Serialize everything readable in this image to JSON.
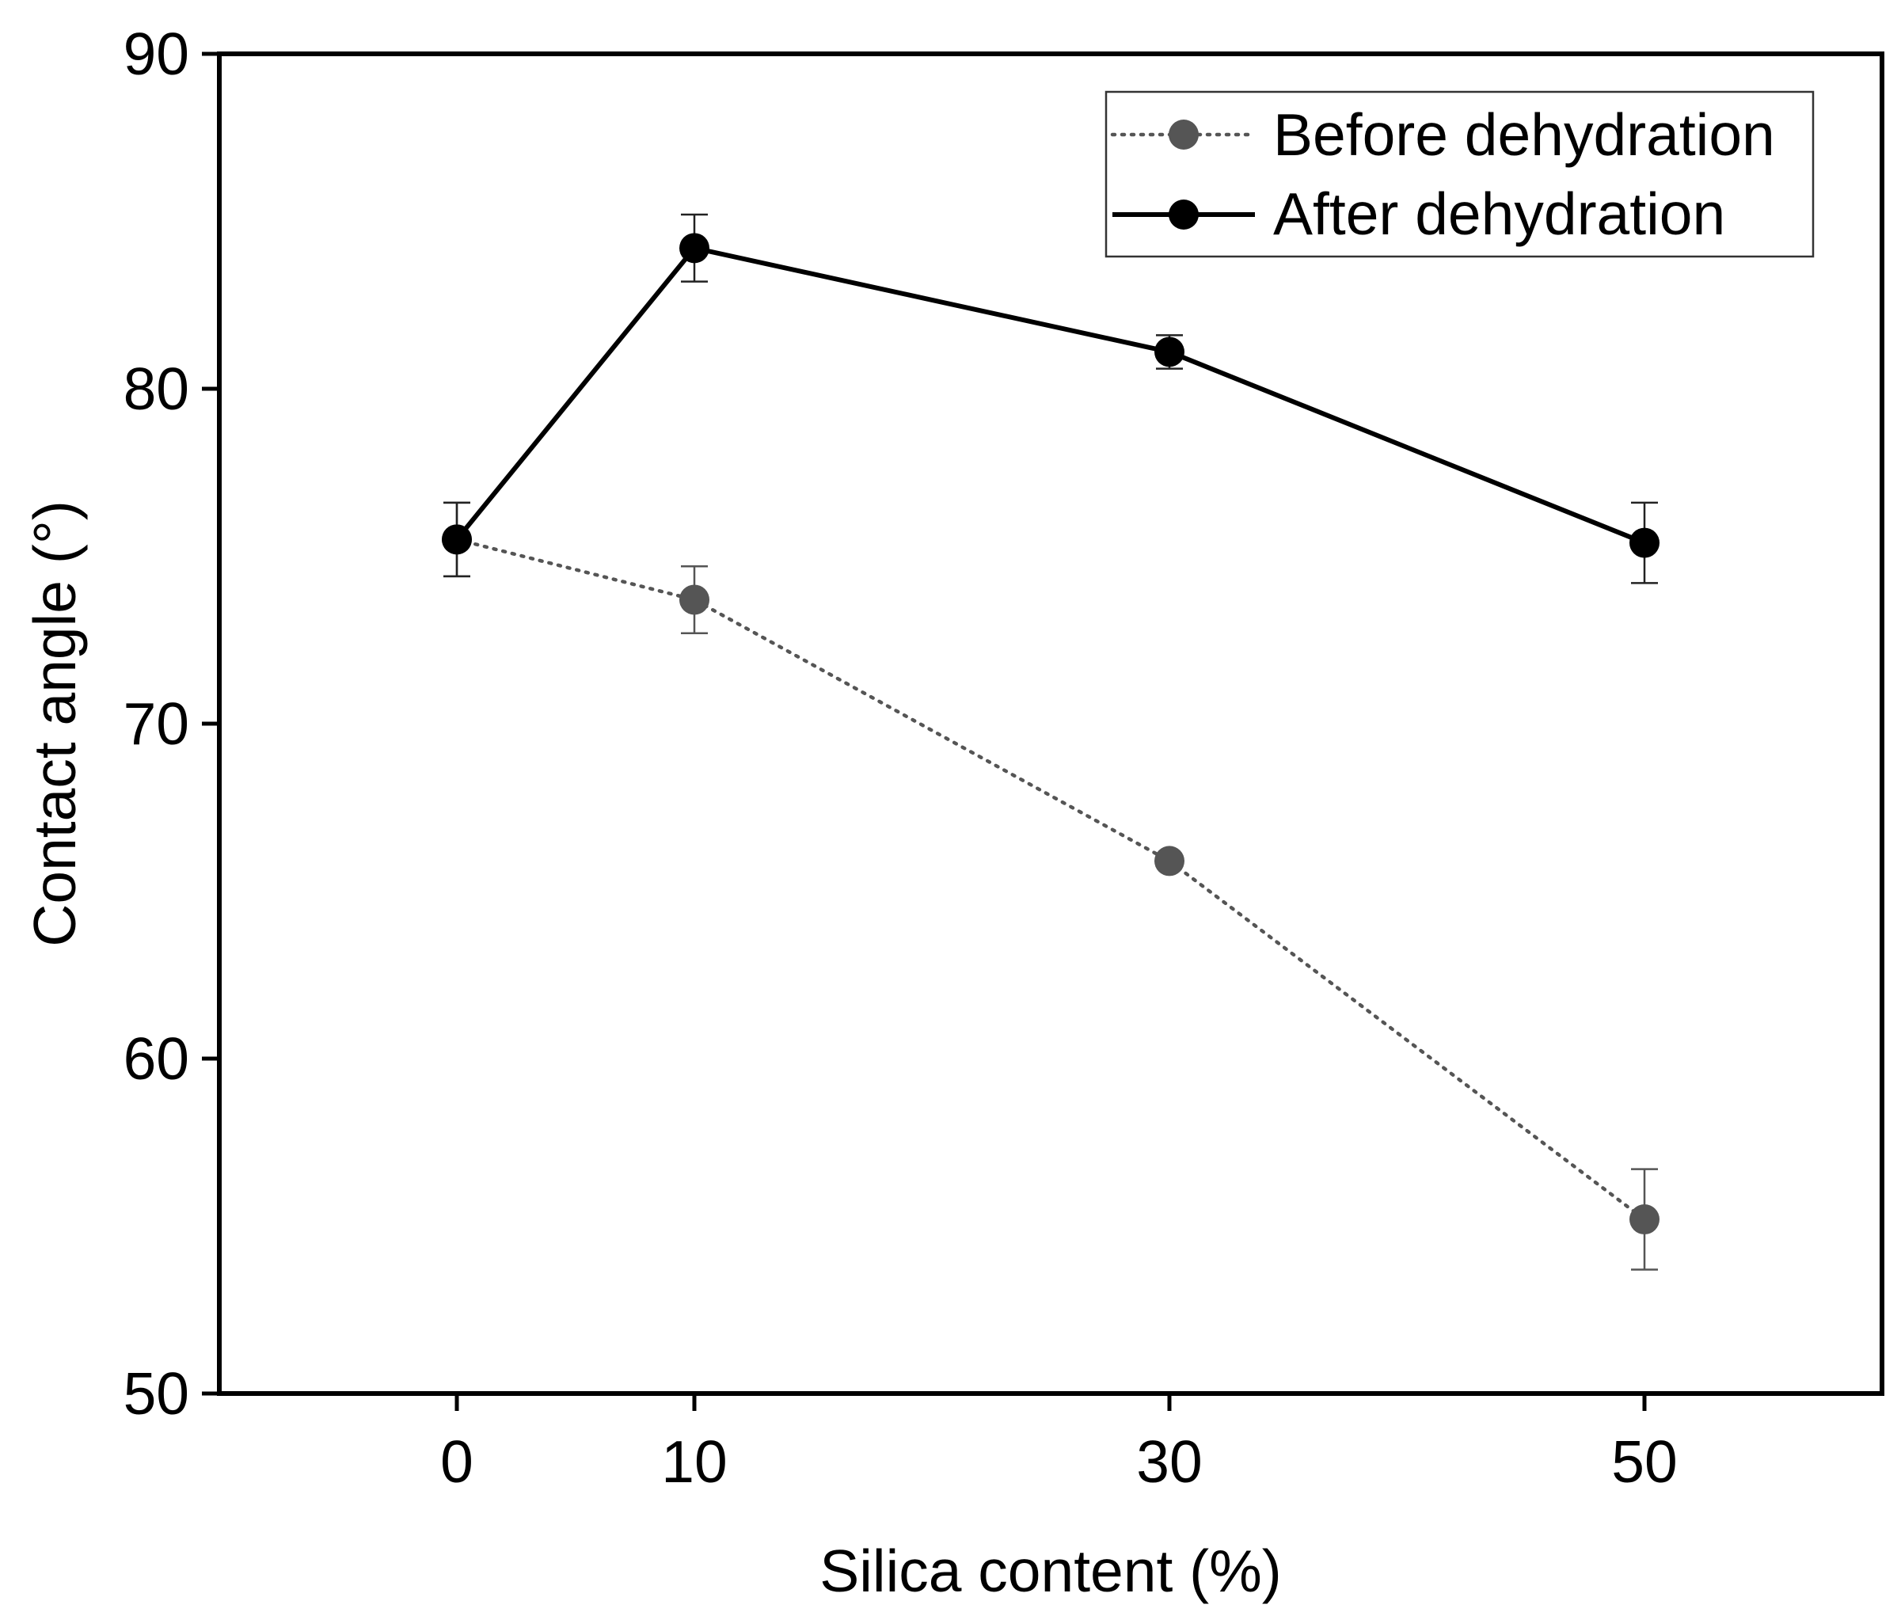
{
  "chart_data": {
    "type": "line",
    "title": "",
    "xlabel": "Silica content (%)",
    "ylabel": "Contact angle (°)",
    "ylim": [
      50,
      90
    ],
    "yticks": [
      50,
      60,
      70,
      80,
      90
    ],
    "categories": [
      "0",
      "10",
      "30",
      "50"
    ],
    "grid": false,
    "legend_position": "top-right",
    "series": [
      {
        "name": "Before dehydration",
        "style": "dotted",
        "color": "#555555",
        "values": [
          75.5,
          73.7,
          65.9,
          55.2
        ],
        "errors": [
          1.1,
          1.0,
          0.0,
          1.5
        ]
      },
      {
        "name": "After dehydration",
        "style": "solid",
        "color": "#000000",
        "values": [
          75.5,
          84.2,
          81.1,
          75.4
        ],
        "errors": [
          1.1,
          1.0,
          0.5,
          1.2
        ]
      }
    ]
  }
}
